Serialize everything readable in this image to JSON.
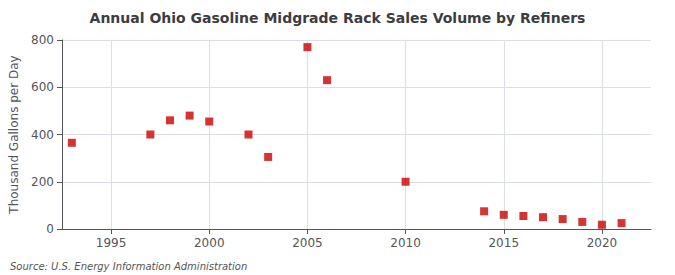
{
  "chart_data": {
    "type": "scatter",
    "title": "Annual Ohio Gasoline Midgrade Rack Sales Volume by Refiners",
    "ylabel": "Thousand Gallons per Day",
    "annotations": [
      "Source: U.S. Energy Information Administration"
    ],
    "x": [
      1993,
      1997,
      1998,
      1999,
      2000,
      2002,
      2003,
      2005,
      2006,
      2010,
      2014,
      2015,
      2016,
      2017,
      2018,
      2019,
      2020,
      2021
    ],
    "values": [
      365,
      400,
      460,
      480,
      455,
      400,
      305,
      770,
      630,
      200,
      75,
      60,
      55,
      50,
      42,
      30,
      18,
      25
    ],
    "color": "#cc0000",
    "marker": "square",
    "xlim": [
      1992.5,
      2022.5
    ],
    "xticks": [
      1995,
      2000,
      2005,
      2010,
      2015,
      2020
    ],
    "ylim": [
      0,
      800
    ],
    "yticks": [
      0,
      200,
      400,
      600,
      800
    ],
    "grid": true
  }
}
